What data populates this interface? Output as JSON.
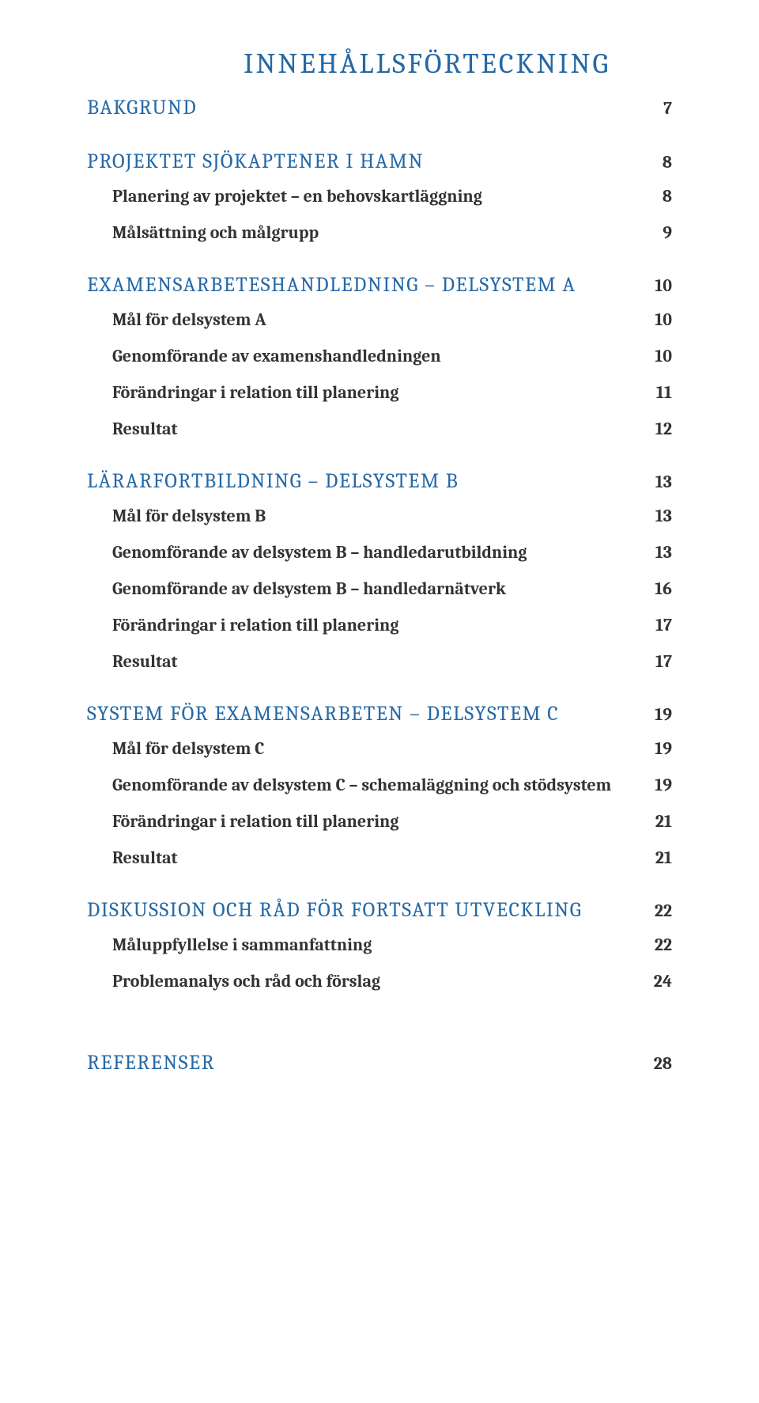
{
  "title": "INNEHÅLLSFÖRTECKNING",
  "sections": [
    {
      "heading": "BAKGRUND",
      "page": "7",
      "items": []
    },
    {
      "heading": "PROJEKTET SJÖKAPTENER I HAMN",
      "page": "8",
      "items": [
        {
          "label": "Planering av projektet – en behovskartläggning",
          "page": "8"
        },
        {
          "label": "Målsättning och målgrupp",
          "page": "9"
        }
      ]
    },
    {
      "heading": "EXAMENSARBETESHANDLEDNING – DELSYSTEM A",
      "page": "10",
      "items": [
        {
          "label": "Mål för delsystem A",
          "page": "10"
        },
        {
          "label": "Genomförande av examenshandledningen",
          "page": "10"
        },
        {
          "label": "Förändringar i relation till planering",
          "page": "11"
        },
        {
          "label": "Resultat",
          "page": "12"
        }
      ]
    },
    {
      "heading": "LÄRARFORTBILDNING – DELSYSTEM B",
      "page": "13",
      "items": [
        {
          "label": "Mål för delsystem B",
          "page": "13"
        },
        {
          "label": "Genomförande av delsystem B – handledarutbildning",
          "page": "13"
        },
        {
          "label": "Genomförande av delsystem B – handledarnätverk",
          "page": "16"
        },
        {
          "label": "Förändringar i relation till planering",
          "page": "17"
        },
        {
          "label": "Resultat",
          "page": "17"
        }
      ]
    },
    {
      "heading": "SYSTEM FÖR EXAMENSARBETEN – DELSYSTEM C",
      "page": "19",
      "items": [
        {
          "label": "Mål för delsystem C",
          "page": "19"
        },
        {
          "label": "Genomförande av delsystem C – schemaläggning och stödsystem",
          "page": "19"
        },
        {
          "label": "Förändringar i relation till planering",
          "page": "21"
        },
        {
          "label": "Resultat",
          "page": "21"
        }
      ]
    },
    {
      "heading": "DISKUSSION OCH RÅD FÖR FORTSATT UTVECKLING",
      "page": "22",
      "items": [
        {
          "label": "Måluppfyllelse i sammanfattning",
          "page": "22"
        },
        {
          "label": "Problemanalys och råd och förslag",
          "page": "24"
        }
      ]
    },
    {
      "heading": "REFERENSER",
      "page": "28",
      "items": []
    }
  ],
  "style": {
    "heading_color": "#2568a5",
    "text_color": "#333333",
    "background_color": "#ffffff",
    "title_fontsize": 36,
    "heading_fontsize": 26,
    "sub_fontsize": 22
  }
}
